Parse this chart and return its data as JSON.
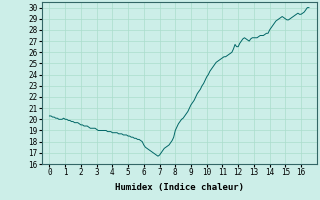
{
  "title": "",
  "xlabel": "Humidex (Indice chaleur)",
  "ylabel": "",
  "xlim": [
    -0.5,
    17.0
  ],
  "ylim": [
    16,
    30.5
  ],
  "yticks": [
    16,
    17,
    18,
    19,
    20,
    21,
    22,
    23,
    24,
    25,
    26,
    27,
    28,
    29,
    30
  ],
  "xticks": [
    0,
    1,
    2,
    3,
    4,
    5,
    6,
    7,
    8,
    9,
    10,
    11,
    12,
    13,
    14,
    15,
    16
  ],
  "bg_color": "#cceee8",
  "line_color": "#006666",
  "grid_color": "#aaddcc",
  "x": [
    0.0,
    0.1,
    0.2,
    0.3,
    0.4,
    0.5,
    0.6,
    0.7,
    0.8,
    0.9,
    1.0,
    1.1,
    1.2,
    1.3,
    1.4,
    1.5,
    1.6,
    1.7,
    1.8,
    1.9,
    2.0,
    2.1,
    2.2,
    2.3,
    2.4,
    2.5,
    2.6,
    2.7,
    2.8,
    2.9,
    3.0,
    3.1,
    3.2,
    3.3,
    3.4,
    3.5,
    3.6,
    3.7,
    3.8,
    3.9,
    4.0,
    4.1,
    4.2,
    4.3,
    4.4,
    4.5,
    4.6,
    4.7,
    4.8,
    4.9,
    5.0,
    5.1,
    5.2,
    5.3,
    5.4,
    5.5,
    5.6,
    5.7,
    5.8,
    5.9,
    6.0,
    6.1,
    6.2,
    6.3,
    6.4,
    6.5,
    6.6,
    6.7,
    6.8,
    6.9,
    7.0,
    7.1,
    7.2,
    7.3,
    7.4,
    7.5,
    7.6,
    7.7,
    7.8,
    7.9,
    8.0,
    8.1,
    8.2,
    8.3,
    8.4,
    8.5,
    8.6,
    8.7,
    8.8,
    8.9,
    9.0,
    9.1,
    9.2,
    9.3,
    9.4,
    9.5,
    9.6,
    9.7,
    9.8,
    9.9,
    10.0,
    10.1,
    10.2,
    10.3,
    10.4,
    10.5,
    10.6,
    10.7,
    10.8,
    10.9,
    11.0,
    11.1,
    11.2,
    11.3,
    11.4,
    11.5,
    11.6,
    11.7,
    11.8,
    11.9,
    12.0,
    12.1,
    12.2,
    12.3,
    12.4,
    12.5,
    12.6,
    12.7,
    12.8,
    12.9,
    13.0,
    13.1,
    13.2,
    13.3,
    13.4,
    13.5,
    13.6,
    13.7,
    13.8,
    13.9,
    14.0,
    14.1,
    14.2,
    14.3,
    14.4,
    14.5,
    14.6,
    14.7,
    14.8,
    14.9,
    15.0,
    15.1,
    15.2,
    15.3,
    15.4,
    15.5,
    15.6,
    15.7,
    15.8,
    15.9,
    16.0,
    16.1,
    16.2,
    16.3,
    16.4,
    16.5
  ],
  "y": [
    20.3,
    20.3,
    20.2,
    20.2,
    20.1,
    20.1,
    20.0,
    20.0,
    20.0,
    20.1,
    20.0,
    20.0,
    19.9,
    19.9,
    19.8,
    19.8,
    19.7,
    19.7,
    19.7,
    19.6,
    19.5,
    19.5,
    19.4,
    19.4,
    19.4,
    19.3,
    19.2,
    19.2,
    19.2,
    19.2,
    19.1,
    19.0,
    19.0,
    19.0,
    19.0,
    19.0,
    19.0,
    18.9,
    18.9,
    18.9,
    18.8,
    18.8,
    18.8,
    18.8,
    18.7,
    18.7,
    18.7,
    18.6,
    18.6,
    18.6,
    18.5,
    18.5,
    18.4,
    18.4,
    18.3,
    18.3,
    18.2,
    18.2,
    18.1,
    18.0,
    17.7,
    17.5,
    17.4,
    17.3,
    17.2,
    17.1,
    17.0,
    16.9,
    16.8,
    16.7,
    16.8,
    17.0,
    17.2,
    17.4,
    17.5,
    17.6,
    17.7,
    17.9,
    18.1,
    18.4,
    19.0,
    19.3,
    19.6,
    19.8,
    20.0,
    20.1,
    20.3,
    20.5,
    20.7,
    21.0,
    21.3,
    21.5,
    21.7,
    22.0,
    22.3,
    22.5,
    22.7,
    23.0,
    23.2,
    23.5,
    23.8,
    24.0,
    24.3,
    24.5,
    24.7,
    24.9,
    25.1,
    25.2,
    25.3,
    25.4,
    25.5,
    25.6,
    25.6,
    25.7,
    25.8,
    25.9,
    26.0,
    26.3,
    26.7,
    26.5,
    26.5,
    26.8,
    27.0,
    27.2,
    27.3,
    27.2,
    27.1,
    27.0,
    27.2,
    27.3,
    27.3,
    27.3,
    27.3,
    27.4,
    27.5,
    27.5,
    27.5,
    27.6,
    27.7,
    27.7,
    28.0,
    28.2,
    28.4,
    28.6,
    28.8,
    28.9,
    29.0,
    29.1,
    29.2,
    29.1,
    29.0,
    28.9,
    28.9,
    29.0,
    29.1,
    29.2,
    29.3,
    29.4,
    29.5,
    29.4,
    29.4,
    29.5,
    29.6,
    29.8,
    30.0,
    30.0
  ]
}
